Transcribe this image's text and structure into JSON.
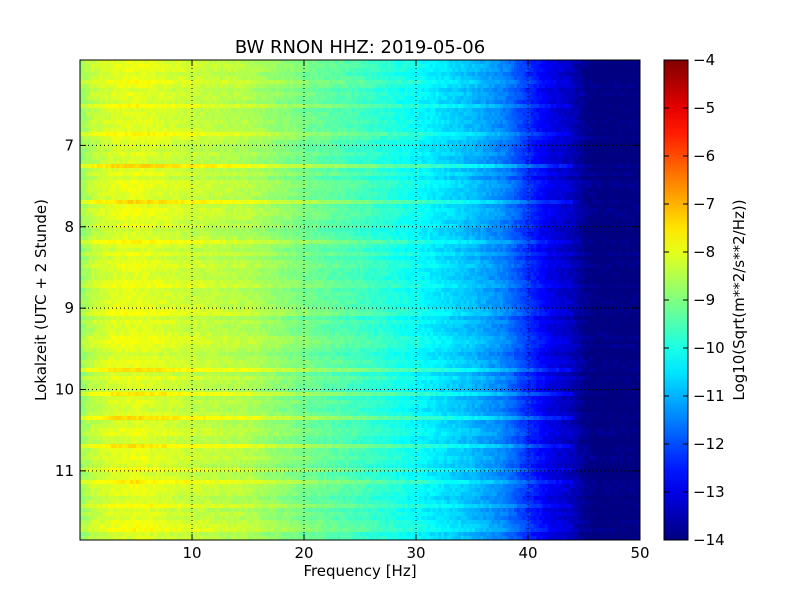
{
  "chart_data": {
    "type": "heatmap",
    "title": "BW RNON HHZ: 2019-05-06",
    "xlabel": "Frequency [Hz]",
    "ylabel": "Lokalzeit (UTC + 2 Stunde)",
    "xlim": [
      0,
      50
    ],
    "ylim": [
      5.95,
      11.85
    ],
    "y_inverted": true,
    "grid": "dotted",
    "x_ticks": [
      10,
      20,
      30,
      40,
      50
    ],
    "x_tick_labels": [
      "10",
      "20",
      "30",
      "40",
      "50"
    ],
    "y_ticks": [
      7,
      8,
      9,
      10,
      11
    ],
    "y_tick_labels": [
      "7",
      "8",
      "9",
      "10",
      "11"
    ],
    "colormap": "jet",
    "colorbar": {
      "label": "Log10(Sqrt(m**2/s**2/Hz))",
      "range": [
        -14,
        -4
      ],
      "ticks": [
        -4,
        -5,
        -6,
        -7,
        -8,
        -9,
        -10,
        -11,
        -12,
        -13,
        -14
      ],
      "tick_labels": [
        "−4",
        "−5",
        "−6",
        "−7",
        "−8",
        "−9",
        "−10",
        "−11",
        "−12",
        "−13",
        "−14"
      ]
    },
    "spectrum_profile": {
      "frequency_hz": [
        0,
        1,
        3,
        5,
        10,
        15,
        20,
        25,
        30,
        35,
        38,
        40,
        42,
        44,
        45,
        46,
        50
      ],
      "typical_log10_amplitude": [
        -8.8,
        -8.4,
        -8.1,
        -8.0,
        -8.3,
        -8.5,
        -9.1,
        -9.6,
        -10.2,
        -10.9,
        -11.5,
        -12.3,
        -13.0,
        -13.4,
        -13.8,
        -14.0,
        -14.0
      ]
    },
    "bright_bands_hours": [
      6.05,
      6.2,
      6.5,
      6.85,
      7.25,
      7.7,
      8.2,
      8.7,
      9.05,
      9.4,
      9.75,
      10.05,
      10.35,
      10.7,
      11.0,
      11.15,
      11.45,
      11.7
    ]
  }
}
